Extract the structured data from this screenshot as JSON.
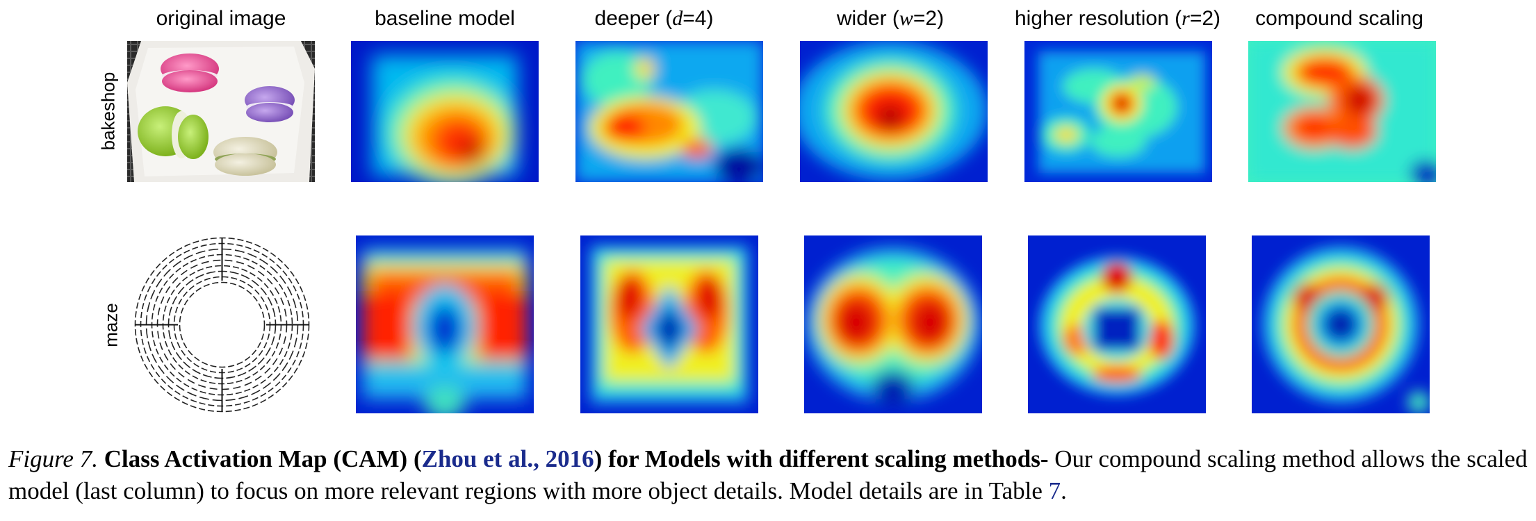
{
  "columns": [
    {
      "text": "original image",
      "math": "",
      "close": ""
    },
    {
      "text": "baseline model",
      "math": "",
      "close": ""
    },
    {
      "text": "deeper (",
      "math": "d",
      "close": "=4)"
    },
    {
      "text": "wider (",
      "math": "w",
      "close": "=2)"
    },
    {
      "text": "higher resolution (",
      "math": "r",
      "close": "=2)"
    },
    {
      "text": "compound scaling",
      "math": "",
      "close": ""
    }
  ],
  "rows": [
    {
      "label": "bakeshop"
    },
    {
      "label": "maze"
    }
  ],
  "caption": {
    "fig_label": "Figure 7.",
    "bold_part1": "Class Activation Map (CAM) (",
    "citation": "Zhou et al., 2016",
    "bold_part2": ") for Models with different scaling methods-",
    "body": " Our compound scaling method allows the scaled model (last column) to focus on more relevant regions with more object details. Model details are in Table ",
    "table_ref": "7",
    "end": "."
  }
}
